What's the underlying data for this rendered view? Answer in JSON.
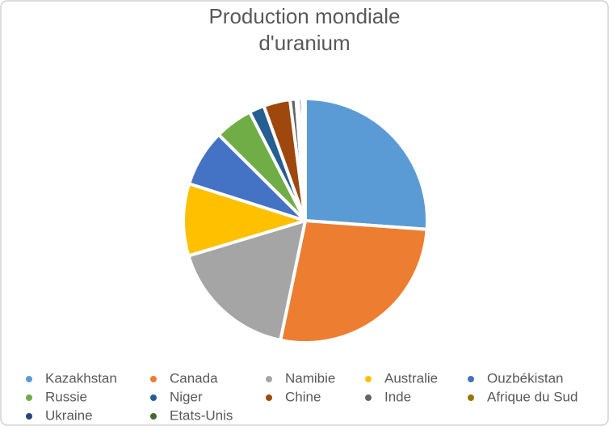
{
  "chart_data": {
    "type": "pie",
    "title": "Production mondiale d'uranium",
    "categories": [
      "Kazakhstan",
      "Canada",
      "Namibie",
      "Australie",
      "Ouzbékistan",
      "Russie",
      "Niger",
      "Chine",
      "Inde",
      "Afrique du Sud",
      "Ukraine",
      "Etats-Unis"
    ],
    "values": [
      26,
      27,
      17,
      9.5,
      7.5,
      5,
      2,
      3.5,
      0.8,
      0.3,
      0.5,
      0.4
    ],
    "colors": [
      "#5b9bd5",
      "#ed7d31",
      "#a5a5a5",
      "#ffc000",
      "#4472c4",
      "#70ad47",
      "#255e91",
      "#9e480e",
      "#636363",
      "#997300",
      "#264478",
      "#43682b"
    ],
    "legend": "bottom"
  }
}
